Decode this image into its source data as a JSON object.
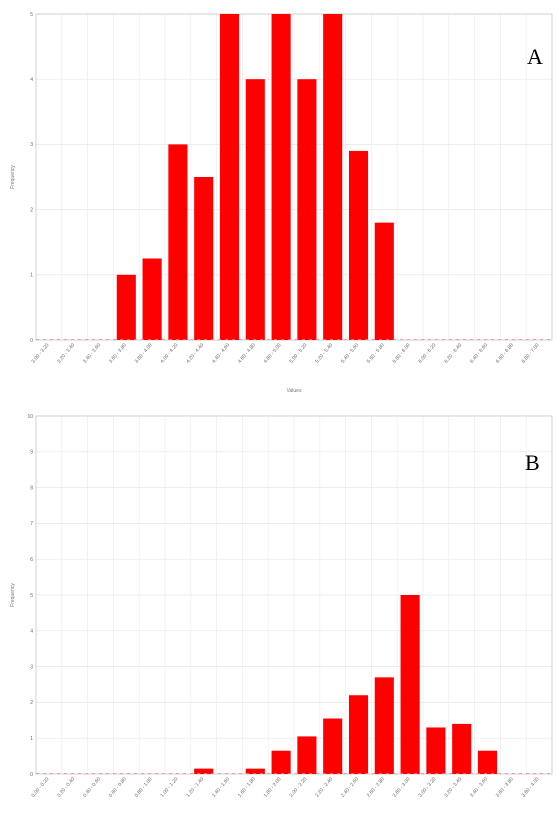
{
  "chart_data": [
    {
      "type": "bar",
      "panel_label": "A",
      "xlabel": "Values",
      "ylabel": "Frequency",
      "ylim": [
        0,
        5
      ],
      "yticks": [
        "0",
        "1",
        "2",
        "3",
        "4",
        "5"
      ],
      "grid": true,
      "bar_color": "#ff0000",
      "categories": [
        "3.00 - 3.20",
        "3.20 - 3.40",
        "3.40 - 3.60",
        "3.60 - 3.80",
        "3.80 - 4.00",
        "4.00 - 4.20",
        "4.20 - 4.40",
        "4.40 - 4.60",
        "4.60 - 4.80",
        "4.80 - 5.00",
        "5.00 - 5.20",
        "5.20 - 5.40",
        "5.40 - 5.60",
        "5.60 - 5.80",
        "5.80 - 6.00",
        "6.00 - 6.20",
        "6.20 - 6.40",
        "6.40 - 6.60",
        "6.60 - 6.80",
        "6.80 - 7.00"
      ],
      "values": [
        0,
        0,
        0,
        1,
        1.25,
        3,
        2.5,
        5,
        4,
        5,
        4,
        5,
        2.9,
        1.8,
        0,
        0,
        0,
        0,
        0,
        0
      ]
    },
    {
      "type": "bar",
      "panel_label": "B",
      "xlabel": "",
      "ylabel": "Frequency",
      "ylim": [
        0,
        10
      ],
      "yticks": [
        "0",
        "1",
        "2",
        "3",
        "4",
        "5",
        "6",
        "7",
        "8",
        "9",
        "10"
      ],
      "grid": true,
      "bar_color": "#ff0000",
      "categories": [
        "0.00 - 0.20",
        "0.20 - 0.40",
        "0.40 - 0.60",
        "0.60 - 0.80",
        "0.80 - 1.00",
        "1.00 - 1.20",
        "1.20 - 1.40",
        "1.40 - 1.60",
        "1.60 - 1.80",
        "1.80 - 2.00",
        "2.00 - 2.20",
        "2.20 - 2.40",
        "2.40 - 2.60",
        "2.60 - 2.80",
        "2.80 - 3.00",
        "3.00 - 3.20",
        "3.20 - 3.40",
        "3.40 - 3.60",
        "3.60 - 3.80",
        "3.80 - 4.00"
      ],
      "values": [
        0,
        0,
        0,
        0,
        0,
        0,
        0.15,
        0,
        0.15,
        0.65,
        1.05,
        1.55,
        2.2,
        2.7,
        5,
        1.3,
        1.4,
        0.65,
        0,
        0
      ]
    }
  ]
}
